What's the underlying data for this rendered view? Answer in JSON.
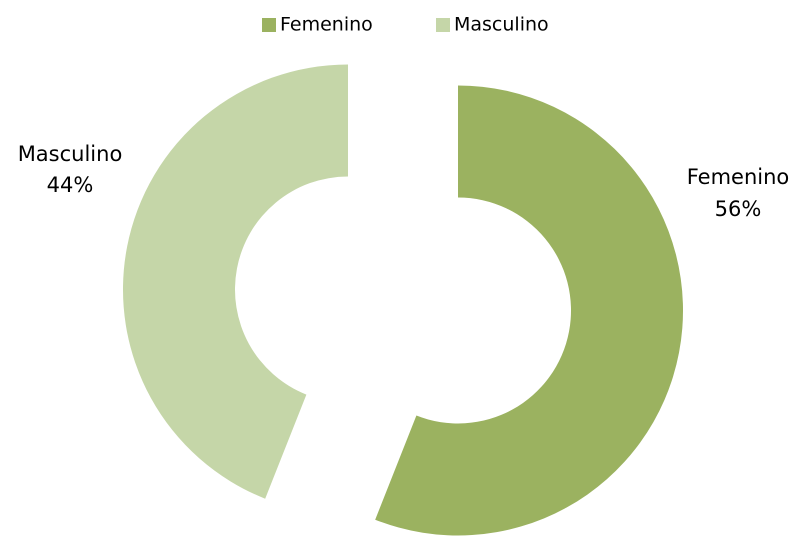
{
  "chart_data": {
    "type": "pie",
    "donut": true,
    "categories": [
      "Femenino",
      "Masculino"
    ],
    "values": [
      56,
      44
    ],
    "value_labels": [
      "56%",
      "44%"
    ],
    "colors": [
      "#9bb260",
      "#c5d6a8"
    ],
    "legend": "top"
  }
}
